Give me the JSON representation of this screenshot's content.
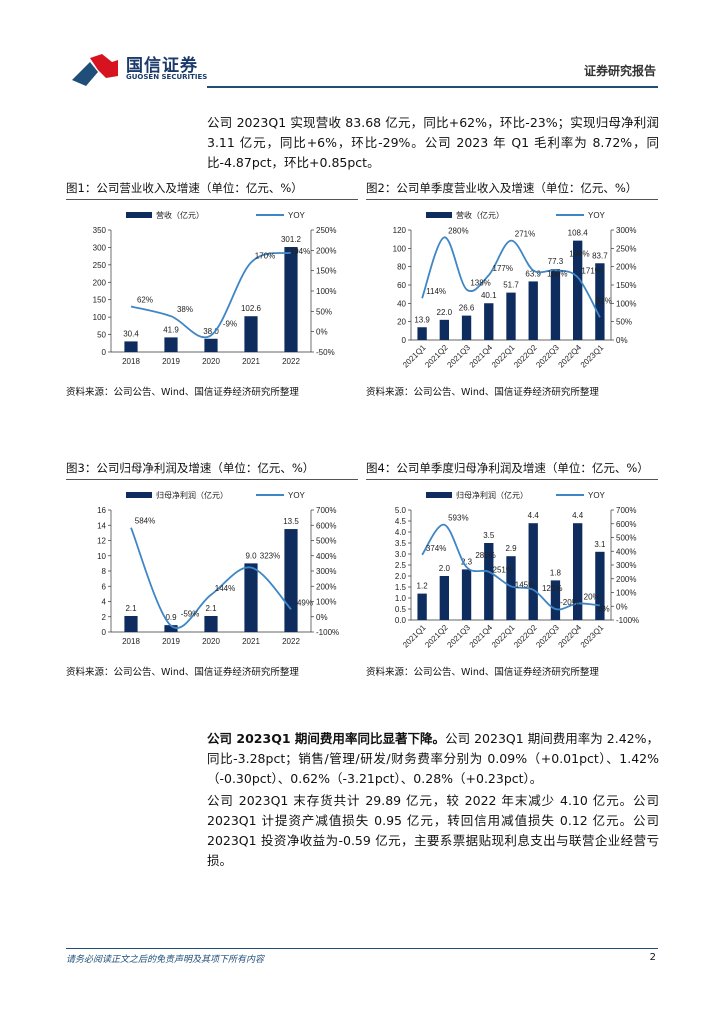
{
  "header": {
    "logo_cn": "国信证券",
    "logo_en": "GUOSEN SECURITIES",
    "report_type": "证券研究报告"
  },
  "paragraphs": {
    "p1": "公司 2023Q1 实现营收 83.68 亿元，同比+62%，环比-23%；实现归母净利润 3.11 亿元，同比+6%，环比-29%。公司 2023 年 Q1 毛利率为 8.72%，同比-4.87pct，环比+0.85pct。",
    "p2_bold": "公司 2023Q1 期间费用率同比显著下降。",
    "p2": "公司 2023Q1 期间费用率为 2.42%，同比-3.28pct；销售/管理/研发/财务费率分别为 0.09%（+0.01pct）、1.42%（-0.30pct）、0.62%（-3.21pct）、0.28%（+0.23pct）。",
    "p3": "公司 2023Q1 末存货共计 29.89 亿元，较 2022 年末减少 4.10 亿元。公司 2023Q1 计提资产减值损失 0.95 亿元，转回信用减值损失 0.12 亿元。公司 2023Q1 投资净收益为-0.59 亿元，主要系票据贴现利息支出与联营企业经营亏损。"
  },
  "colors": {
    "bar": "#0e2d5e",
    "line": "#3f86c6"
  },
  "chart_data": [
    {
      "type": "bar+line",
      "title": "图1：公司营业收入及增速（单位：亿元、%）",
      "source": "资料来源：公司公告、Wind、国信证券经济研究所整理",
      "bar_name": "营收（亿元）",
      "line_name": "YOY",
      "categories": [
        "2018",
        "2019",
        "2020",
        "2021",
        "2022"
      ],
      "bars": [
        30.4,
        41.9,
        38.0,
        102.6,
        301.2
      ],
      "bar_labels": [
        "30.4",
        "41.9",
        "38.0",
        "102.6",
        "301.2"
      ],
      "line": [
        62,
        38,
        -9,
        170,
        194
      ],
      "line_labels": [
        "62%",
        "38%",
        "-9%",
        "170%",
        "194%"
      ],
      "ylim": [
        0,
        350
      ],
      "yticks": [
        0,
        50,
        100,
        150,
        200,
        250,
        300,
        350
      ],
      "y2lim": [
        -50,
        250
      ],
      "y2ticks": [
        -50,
        0,
        50,
        100,
        150,
        200,
        250
      ],
      "rotate_x": false
    },
    {
      "type": "bar+line",
      "title": "图2：公司单季度营业收入及增速（单位：亿元、%）",
      "source": "资料来源：公司公告、Wind、国信证券经济研究所整理",
      "bar_name": "营收（亿元）",
      "line_name": "YOY",
      "categories": [
        "2021Q1",
        "2021Q2",
        "2021Q3",
        "2021Q4",
        "2022Q1",
        "2022Q2",
        "2022Q3",
        "2022Q4",
        "2023Q1"
      ],
      "bars": [
        13.9,
        22.0,
        26.6,
        40.1,
        51.7,
        63.9,
        77.3,
        108.4,
        83.7
      ],
      "bar_labels": [
        "13.9",
        "22.0",
        "26.6",
        "40.1",
        "51.7",
        "63.9",
        "77.3",
        "108.4",
        "83.7"
      ],
      "line": [
        114,
        280,
        138,
        177,
        271,
        190,
        190,
        171,
        62
      ],
      "line_labels": [
        "114%",
        "280%",
        "138%",
        "177%",
        "271%",
        "190%",
        "190%",
        "171%",
        "62%"
      ],
      "ylim": [
        0,
        120
      ],
      "yticks": [
        0,
        20,
        40,
        60,
        80,
        100,
        120
      ],
      "y2lim": [
        0,
        300
      ],
      "y2ticks": [
        0,
        50,
        100,
        150,
        200,
        250,
        300
      ],
      "rotate_x": true
    },
    {
      "type": "bar+line",
      "title": "图3：公司归母净利润及增速（单位：亿元、%）",
      "source": "资料来源：公司公告、Wind、国信证券经济研究所整理",
      "bar_name": "归母净利润（亿元）",
      "line_name": "YOY",
      "categories": [
        "2018",
        "2019",
        "2020",
        "2021",
        "2022"
      ],
      "bars": [
        2.1,
        0.9,
        2.1,
        9.0,
        13.5
      ],
      "bar_labels": [
        "2.1",
        "0.9",
        "2.1",
        "9.0",
        "13.5"
      ],
      "line": [
        584,
        -59,
        144,
        323,
        49
      ],
      "line_labels": [
        "584%",
        "-59%",
        "144%",
        "323%",
        "49%"
      ],
      "ylim": [
        0,
        16
      ],
      "yticks": [
        0,
        2,
        4,
        6,
        8,
        10,
        12,
        14,
        16
      ],
      "y2lim": [
        -100,
        700
      ],
      "y2ticks": [
        -100,
        0,
        100,
        200,
        300,
        400,
        500,
        600,
        700
      ],
      "rotate_x": false
    },
    {
      "type": "bar+line",
      "title": "图4：公司单季度归母净利润及增速（单位：亿元、%）",
      "source": "资料来源：公司公告、Wind、国信证券经济研究所整理",
      "bar_name": "归母净利润（亿元）",
      "line_name": "YOY",
      "categories": [
        "2021Q1",
        "2021Q2",
        "2021Q3",
        "2021Q4",
        "2022Q1",
        "2022Q2",
        "2022Q3",
        "2022Q4",
        "2023Q1"
      ],
      "bars": [
        1.2,
        2.0,
        2.3,
        3.5,
        2.9,
        4.4,
        1.8,
        4.4,
        3.1
      ],
      "bar_labels": [
        "1.2",
        "2.0",
        "2.3",
        "3.5",
        "2.9",
        "4.4",
        "1.8",
        "4.4",
        "3.1"
      ],
      "line": [
        374,
        593,
        285,
        251,
        145,
        120,
        -20,
        20,
        6
      ],
      "line_labels": [
        "374%",
        "593%",
        "285%",
        "251%",
        "145%",
        "120%",
        "-20%",
        "20%",
        "6%"
      ],
      "ylim": [
        0,
        5
      ],
      "yticks": [
        "0.0",
        "0.5",
        "1.0",
        "1.5",
        "2.0",
        "2.5",
        "3.0",
        "3.5",
        "4.0",
        "4.5",
        "5.0"
      ],
      "y2lim": [
        -100,
        700
      ],
      "y2ticks": [
        -100,
        0,
        100,
        200,
        300,
        400,
        500,
        600,
        700
      ],
      "rotate_x": true
    }
  ],
  "footer": {
    "note": "请务必阅读正文之后的免责声明及其项下所有内容",
    "page": "2"
  }
}
